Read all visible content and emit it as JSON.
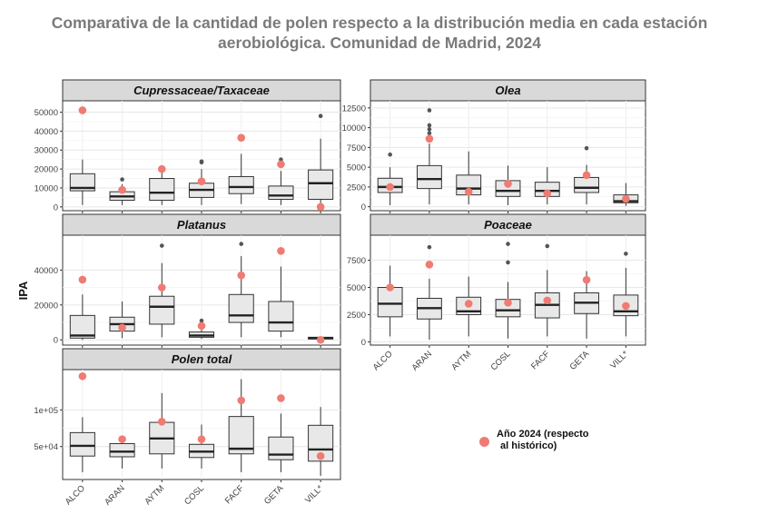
{
  "title_lines": [
    "Comparativa de la cantidad de polen respecto a la distribución media en cada estación",
    "aerobiológica. Comunidad de Madrid, 2024"
  ],
  "ylabel": "IPA",
  "legend": {
    "line1": "Año 2024 (respecto",
    "line2": "al histórico)",
    "color": "#F07B72"
  },
  "colors": {
    "box_fill": "#E8E8E8",
    "strip_fill": "#D9D9D9",
    "point": "#F07B72",
    "outlier": "#555555"
  },
  "chart_data": [
    {
      "type": "box",
      "title": "Cupressaceae/Taxaceae",
      "categories": [
        "ALCO",
        "ARAN",
        "AYTM",
        "COSL",
        "FACF",
        "GETA",
        "VILL*"
      ],
      "ylim": [
        -2000,
        56000
      ],
      "yticks": [
        0,
        10000,
        20000,
        30000,
        40000,
        50000
      ],
      "ytick_labels": [
        "0",
        "10000",
        "20000",
        "30000",
        "40000",
        "50000"
      ],
      "boxes": [
        {
          "low": 1000,
          "q1": 8500,
          "median": 10000,
          "q3": 17500,
          "high": 25000,
          "outliers": []
        },
        {
          "low": 1000,
          "q1": 3500,
          "median": 5500,
          "q3": 8000,
          "high": 12000,
          "outliers": [
            14500
          ]
        },
        {
          "low": 1000,
          "q1": 3500,
          "median": 7500,
          "q3": 15000,
          "high": 20000,
          "outliers": []
        },
        {
          "low": 1000,
          "q1": 5000,
          "median": 9000,
          "q3": 12500,
          "high": 20000,
          "outliers": [
            23500,
            24000
          ]
        },
        {
          "low": 1500,
          "q1": 7000,
          "median": 10500,
          "q3": 16000,
          "high": 28000,
          "outliers": []
        },
        {
          "low": 1000,
          "q1": 4000,
          "median": 6000,
          "q3": 11000,
          "high": 19000,
          "outliers": [
            25000
          ]
        },
        {
          "low": 1000,
          "q1": 4000,
          "median": 12500,
          "q3": 19500,
          "high": 36000,
          "outliers": [
            48000
          ]
        }
      ],
      "year2024": [
        51000,
        9000,
        20000,
        13500,
        36500,
        22500,
        0
      ]
    },
    {
      "type": "box",
      "title": "Olea",
      "categories": [
        "ALCO",
        "ARAN",
        "AYTM",
        "COSL",
        "FACF",
        "GETA",
        "VILL*"
      ],
      "ylim": [
        -500,
        13400
      ],
      "yticks": [
        0,
        2500,
        5000,
        7500,
        10000,
        12500
      ],
      "ytick_labels": [
        "0",
        "2500",
        "5000",
        "7500",
        "10000",
        "12500"
      ],
      "boxes": [
        {
          "low": 200,
          "q1": 1800,
          "median": 2500,
          "q3": 3600,
          "high": 5000,
          "outliers": [
            6600
          ]
        },
        {
          "low": 300,
          "q1": 2300,
          "median": 3500,
          "q3": 5200,
          "high": 8000,
          "outliers": [
            9300,
            9800,
            10300,
            12200
          ]
        },
        {
          "low": 300,
          "q1": 1500,
          "median": 2300,
          "q3": 4000,
          "high": 7000,
          "outliers": []
        },
        {
          "low": 200,
          "q1": 1300,
          "median": 2000,
          "q3": 3300,
          "high": 5200,
          "outliers": []
        },
        {
          "low": 300,
          "q1": 1300,
          "median": 2000,
          "q3": 3100,
          "high": 5000,
          "outliers": []
        },
        {
          "low": 300,
          "q1": 1800,
          "median": 2400,
          "q3": 3700,
          "high": 5300,
          "outliers": [
            7400
          ]
        },
        {
          "low": 100,
          "q1": 500,
          "median": 700,
          "q3": 1500,
          "high": 3000,
          "outliers": []
        }
      ],
      "year2024": [
        2500,
        8600,
        1900,
        2900,
        1700,
        4000,
        1000
      ]
    },
    {
      "type": "box",
      "title": "Platanus",
      "categories": [
        "ALCO",
        "ARAN",
        "AYTM",
        "COSL",
        "FACF",
        "GETA",
        "VILL*"
      ],
      "ylim": [
        -3000,
        60000
      ],
      "yticks": [
        0,
        20000,
        40000
      ],
      "ytick_labels": [
        "0",
        "20000",
        "40000"
      ],
      "boxes": [
        {
          "low": 0,
          "q1": 1000,
          "median": 2500,
          "q3": 14000,
          "high": 26000,
          "outliers": []
        },
        {
          "low": 1000,
          "q1": 5000,
          "median": 9000,
          "q3": 13000,
          "high": 22000,
          "outliers": []
        },
        {
          "low": 1500,
          "q1": 9000,
          "median": 19000,
          "q3": 25000,
          "high": 44000,
          "outliers": [
            54000
          ]
        },
        {
          "low": 500,
          "q1": 1500,
          "median": 2500,
          "q3": 4500,
          "high": 7000,
          "outliers": [
            11000
          ]
        },
        {
          "low": 1500,
          "q1": 10000,
          "median": 14000,
          "q3": 26000,
          "high": 48000,
          "outliers": [
            55000
          ]
        },
        {
          "low": 1500,
          "q1": 5000,
          "median": 10000,
          "q3": 22000,
          "high": 42000,
          "outliers": []
        },
        {
          "low": 0,
          "q1": 500,
          "median": 1000,
          "q3": 1500,
          "high": 2000,
          "outliers": []
        }
      ],
      "year2024": [
        34500,
        7000,
        30000,
        8000,
        37000,
        51000,
        0
      ]
    },
    {
      "type": "box",
      "title": "Poaceae",
      "categories": [
        "ALCO",
        "ARAN",
        "AYTM",
        "COSL",
        "FACF",
        "GETA",
        "VILL*"
      ],
      "ylim": [
        -300,
        9800
      ],
      "yticks": [
        0,
        2500,
        5000,
        7500
      ],
      "ytick_labels": [
        "0",
        "2500",
        "5000",
        "7500"
      ],
      "boxes": [
        {
          "low": 500,
          "q1": 2300,
          "median": 3500,
          "q3": 5000,
          "high": 7000,
          "outliers": []
        },
        {
          "low": 200,
          "q1": 2100,
          "median": 3100,
          "q3": 4000,
          "high": 5800,
          "outliers": [
            8700
          ]
        },
        {
          "low": 500,
          "q1": 2500,
          "median": 2800,
          "q3": 4100,
          "high": 6000,
          "outliers": []
        },
        {
          "low": 300,
          "q1": 2300,
          "median": 2900,
          "q3": 3900,
          "high": 5500,
          "outliers": [
            7300,
            9000
          ]
        },
        {
          "low": 500,
          "q1": 2200,
          "median": 3400,
          "q3": 4500,
          "high": 6600,
          "outliers": [
            8800
          ]
        },
        {
          "low": 300,
          "q1": 2600,
          "median": 3600,
          "q3": 4500,
          "high": 6500,
          "outliers": []
        },
        {
          "low": 500,
          "q1": 2400,
          "median": 2800,
          "q3": 4300,
          "high": 6800,
          "outliers": [
            8100
          ]
        }
      ],
      "year2024": [
        5000,
        7100,
        3500,
        3600,
        3800,
        5700,
        3300
      ]
    },
    {
      "type": "box",
      "title": "Polen total",
      "categories": [
        "ALCO",
        "ARAN",
        "AYTM",
        "COSL",
        "FACF",
        "GETA",
        "VILL*"
      ],
      "ylim": [
        5000,
        155000
      ],
      "yticks": [
        50000,
        100000
      ],
      "ytick_labels": [
        "5e+04",
        "1e+05"
      ],
      "boxes": [
        {
          "low": 15000,
          "q1": 37000,
          "median": 51000,
          "q3": 69000,
          "high": 90000,
          "outliers": []
        },
        {
          "low": 20000,
          "q1": 36000,
          "median": 43000,
          "q3": 54000,
          "high": 62000,
          "outliers": []
        },
        {
          "low": 20000,
          "q1": 40000,
          "median": 61000,
          "q3": 83000,
          "high": 123000,
          "outliers": []
        },
        {
          "low": 20000,
          "q1": 35000,
          "median": 43000,
          "q3": 53000,
          "high": 80000,
          "outliers": []
        },
        {
          "low": 15000,
          "q1": 40000,
          "median": 47000,
          "q3": 91000,
          "high": 142000,
          "outliers": []
        },
        {
          "low": 15000,
          "q1": 32000,
          "median": 39000,
          "q3": 63000,
          "high": 95000,
          "outliers": []
        },
        {
          "low": 10000,
          "q1": 30000,
          "median": 46000,
          "q3": 79000,
          "high": 104000,
          "outliers": []
        }
      ],
      "year2024": [
        146000,
        60000,
        84000,
        60000,
        113000,
        116000,
        37000
      ]
    }
  ]
}
